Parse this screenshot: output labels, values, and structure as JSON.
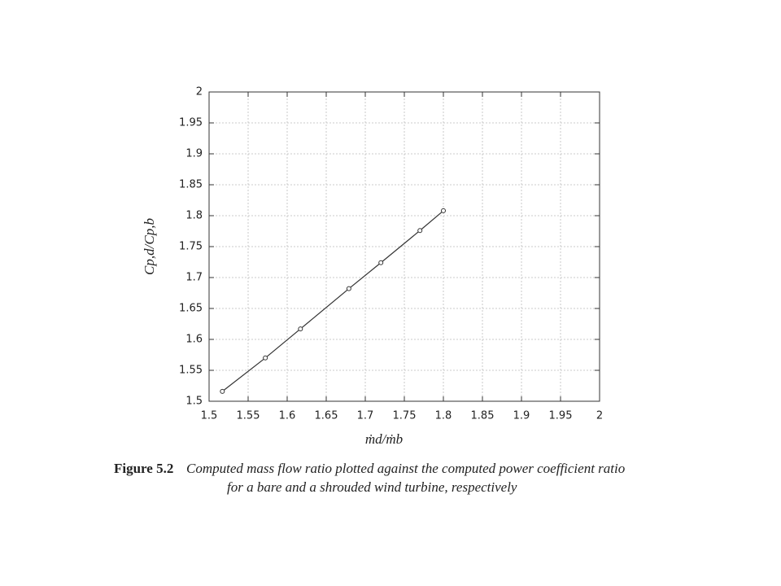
{
  "chart_data": {
    "type": "line",
    "xlabel": "ṁd/ṁb",
    "ylabel": "Cp,d/Cp,b",
    "x": [
      1.517,
      1.572,
      1.617,
      1.679,
      1.72,
      1.77,
      1.8
    ],
    "values": [
      1.516,
      1.57,
      1.617,
      1.682,
      1.724,
      1.776,
      1.808
    ],
    "color": "#333333",
    "xlim": [
      1.5,
      2
    ],
    "ylim": [
      1.5,
      2
    ],
    "xticks": [
      1.5,
      1.55,
      1.6,
      1.65,
      1.7,
      1.75,
      1.8,
      1.85,
      1.9,
      1.95,
      2
    ],
    "yticks": [
      1.5,
      1.55,
      1.6,
      1.65,
      1.7,
      1.75,
      1.8,
      1.85,
      1.9,
      1.95,
      2
    ],
    "grid": true,
    "caption": {
      "label": "Figure 5.2",
      "lines": [
        "Computed mass flow ratio plotted against the computed power coefficient ratio",
        "for a bare and a shrouded wind turbine, respectively"
      ]
    }
  }
}
